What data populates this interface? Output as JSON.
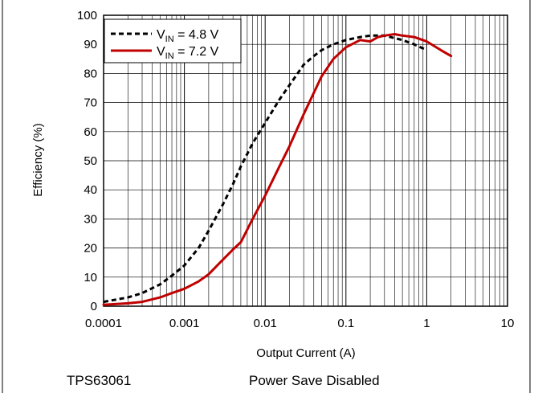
{
  "chart_data": {
    "type": "line",
    "xlabel": "Output Current (A)",
    "ylabel": "Efficiency (%)",
    "xscale": "log",
    "xlim": [
      0.0001,
      10
    ],
    "ylim": [
      0,
      100
    ],
    "x_tick_labels": [
      "0.0001",
      "0.001",
      "0.01",
      "0.1",
      "1",
      "10"
    ],
    "y_tick_labels": [
      "0",
      "10",
      "20",
      "30",
      "40",
      "50",
      "60",
      "70",
      "80",
      "90",
      "100"
    ],
    "grid": true,
    "legend_position": "top-left",
    "series": [
      {
        "name": "V",
        "name_sub": "IN",
        "name_suffix": " = 4.8 V",
        "style": "dashed",
        "color": "#000000",
        "x": [
          0.0001,
          0.0002,
          0.0003,
          0.0005,
          0.0007,
          0.001,
          0.0015,
          0.002,
          0.003,
          0.004,
          0.005,
          0.007,
          0.01,
          0.015,
          0.02,
          0.03,
          0.04,
          0.05,
          0.07,
          0.1,
          0.15,
          0.2,
          0.3,
          0.5,
          0.7,
          1.0
        ],
        "y": [
          1.5,
          3,
          4.5,
          7.5,
          10.5,
          14,
          20,
          26,
          35,
          42,
          48,
          56,
          63,
          71,
          76,
          83,
          86,
          88,
          90,
          91.5,
          92.5,
          93,
          93,
          91.5,
          90,
          88
        ]
      },
      {
        "name": "V",
        "name_sub": "IN",
        "name_suffix": " = 7.2 V",
        "style": "solid",
        "color": "#c00000",
        "x": [
          0.0001,
          0.0002,
          0.0003,
          0.0005,
          0.0007,
          0.001,
          0.0015,
          0.002,
          0.003,
          0.004,
          0.005,
          0.007,
          0.01,
          0.015,
          0.02,
          0.03,
          0.05,
          0.07,
          0.1,
          0.15,
          0.2,
          0.25,
          0.3,
          0.4,
          0.5,
          0.7,
          1.0,
          1.5,
          2.0
        ],
        "y": [
          0.5,
          1,
          1.5,
          3,
          4.5,
          6,
          8.5,
          11,
          16,
          19.5,
          22,
          30,
          38,
          48,
          55,
          66,
          79,
          85,
          89,
          91.5,
          91,
          92.5,
          93,
          93.5,
          93,
          92.5,
          91,
          88,
          86
        ]
      }
    ]
  },
  "footer": {
    "left": "TPS63061",
    "right": "Power Save Disabled"
  }
}
